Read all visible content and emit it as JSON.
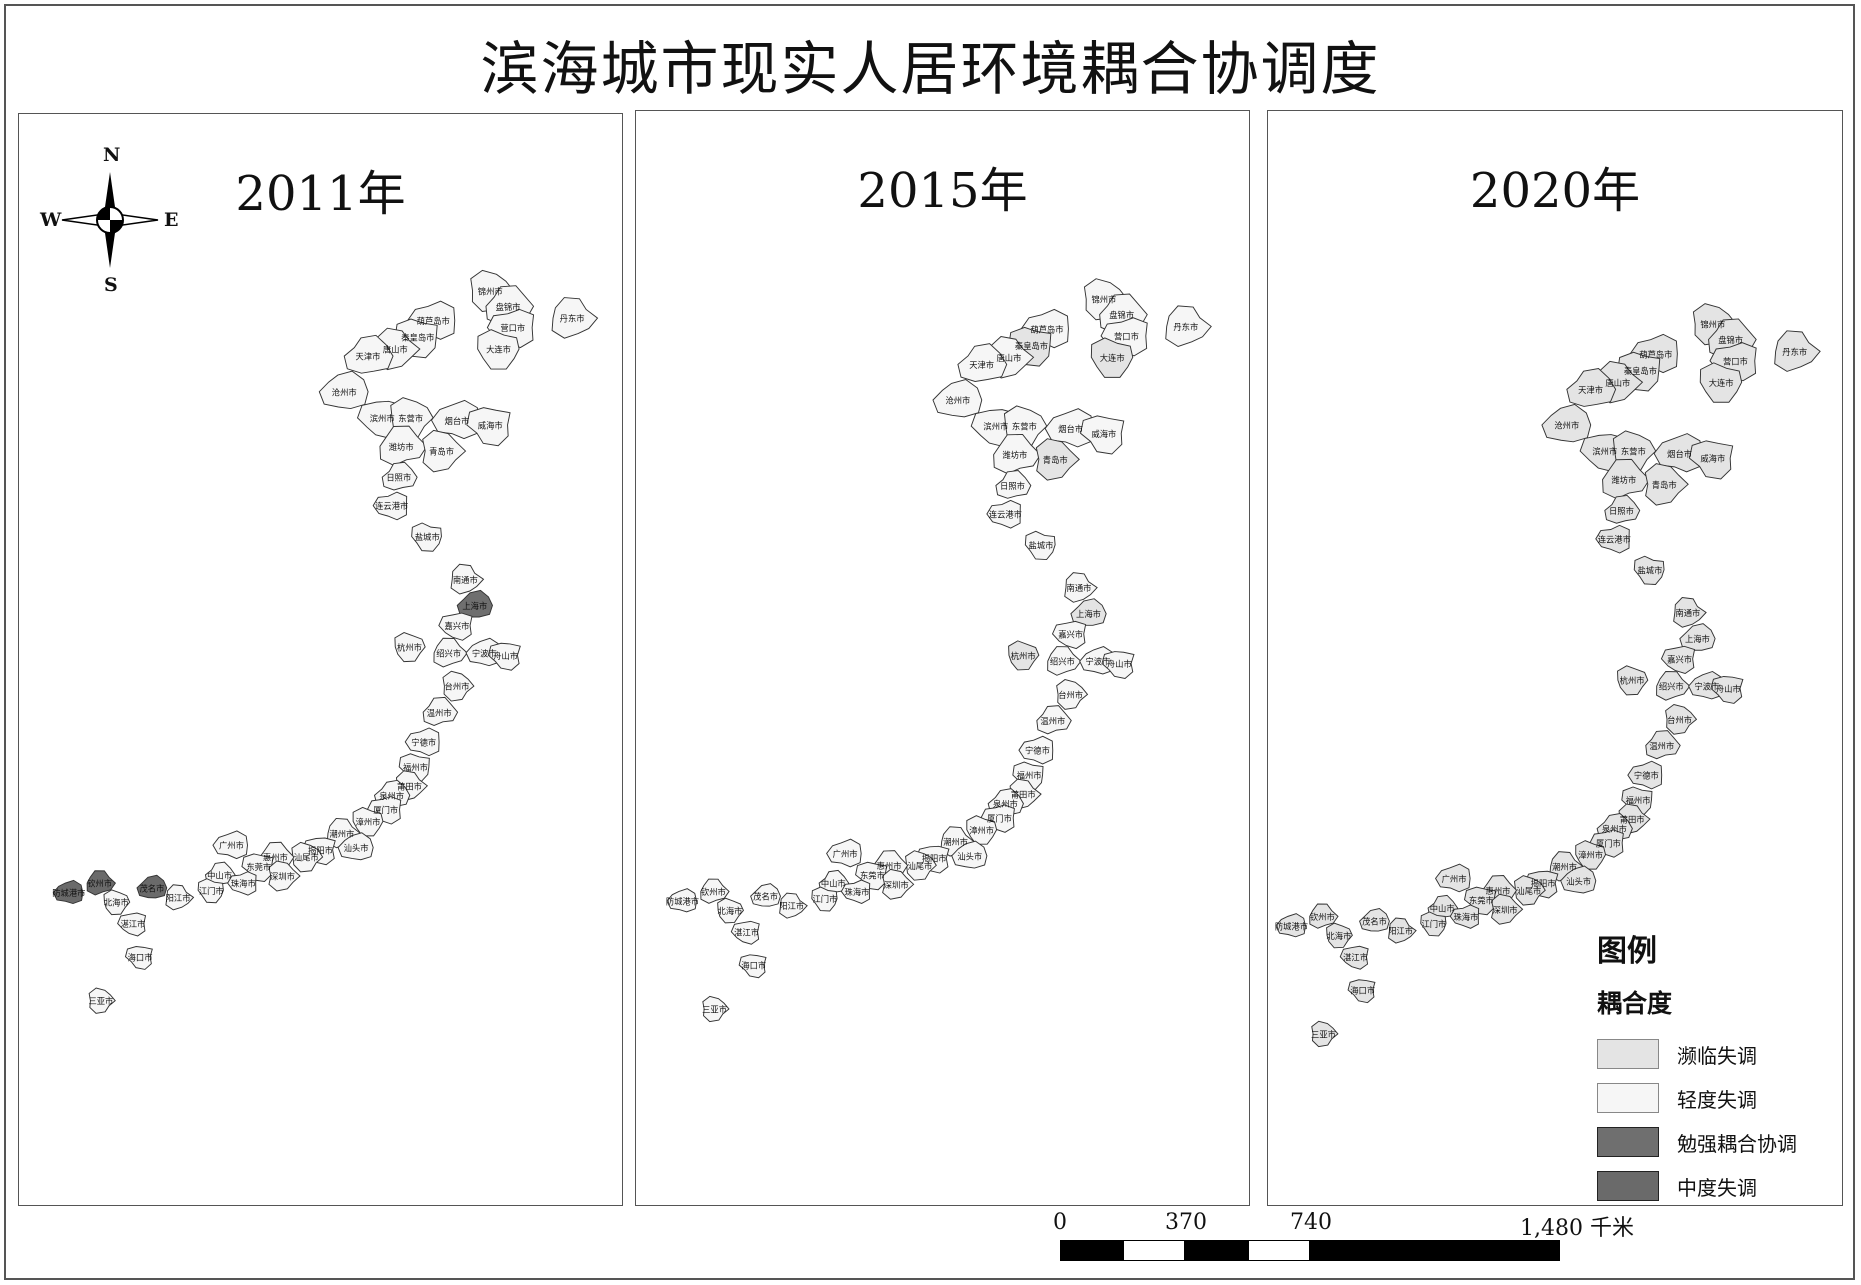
{
  "title": "滨海城市现实人居环境耦合协调度",
  "panels": [
    {
      "year": "2011年"
    },
    {
      "year": "2015年"
    },
    {
      "year": "2020年"
    }
  ],
  "compass": {
    "n": "N",
    "s": "S",
    "e": "E",
    "w": "W"
  },
  "legend": {
    "title": "图例",
    "subtitle": "耦合度",
    "items": [
      {
        "label": "濒临失调",
        "color": "#e4e4e4"
      },
      {
        "label": "轻度失调",
        "color": "#f6f6f6"
      },
      {
        "label": "勉强耦合协调",
        "color": "#6f6f6f"
      },
      {
        "label": "中度失调",
        "color": "#6a6a6a"
      }
    ]
  },
  "scale_bar": {
    "ticks": [
      "0",
      "370",
      "740",
      "1,480 千米"
    ]
  },
  "cities": [
    {
      "name": "锦州市",
      "c": [
        1,
        1,
        0
      ]
    },
    {
      "name": "盘锦市",
      "c": [
        1,
        1,
        0
      ]
    },
    {
      "name": "葫芦岛市",
      "c": [
        1,
        1,
        0
      ]
    },
    {
      "name": "秦皇岛市",
      "c": [
        1,
        0,
        0
      ]
    },
    {
      "name": "唐山市",
      "c": [
        1,
        1,
        0
      ]
    },
    {
      "name": "天津市",
      "c": [
        1,
        1,
        0
      ]
    },
    {
      "name": "营口市",
      "c": [
        1,
        1,
        0
      ]
    },
    {
      "name": "大连市",
      "c": [
        1,
        0,
        0
      ]
    },
    {
      "name": "丹东市",
      "c": [
        1,
        1,
        0
      ]
    },
    {
      "name": "沧州市",
      "c": [
        1,
        1,
        0
      ]
    },
    {
      "name": "滨州市",
      "c": [
        1,
        1,
        0
      ]
    },
    {
      "name": "东营市",
      "c": [
        1,
        1,
        0
      ]
    },
    {
      "name": "潍坊市",
      "c": [
        1,
        1,
        0
      ]
    },
    {
      "name": "烟台市",
      "c": [
        1,
        1,
        0
      ]
    },
    {
      "name": "威海市",
      "c": [
        1,
        1,
        0
      ]
    },
    {
      "name": "青岛市",
      "c": [
        1,
        0,
        0
      ]
    },
    {
      "name": "日照市",
      "c": [
        1,
        1,
        0
      ]
    },
    {
      "name": "连云港市",
      "c": [
        1,
        1,
        0
      ]
    },
    {
      "name": "盐城市",
      "c": [
        1,
        1,
        0
      ]
    },
    {
      "name": "南通市",
      "c": [
        1,
        1,
        0
      ]
    },
    {
      "name": "上海市",
      "c": [
        2,
        0,
        0
      ]
    },
    {
      "name": "嘉兴市",
      "c": [
        1,
        1,
        0
      ]
    },
    {
      "name": "杭州市",
      "c": [
        1,
        0,
        0
      ]
    },
    {
      "name": "绍兴市",
      "c": [
        1,
        1,
        0
      ]
    },
    {
      "name": "宁波市",
      "c": [
        1,
        1,
        0
      ]
    },
    {
      "name": "舟山市",
      "c": [
        1,
        1,
        0
      ]
    },
    {
      "name": "台州市",
      "c": [
        1,
        1,
        0
      ]
    },
    {
      "name": "温州市",
      "c": [
        1,
        1,
        0
      ]
    },
    {
      "name": "宁德市",
      "c": [
        1,
        1,
        0
      ]
    },
    {
      "name": "福州市",
      "c": [
        1,
        1,
        0
      ]
    },
    {
      "name": "莆田市",
      "c": [
        1,
        1,
        0
      ]
    },
    {
      "name": "泉州市",
      "c": [
        1,
        1,
        0
      ]
    },
    {
      "name": "厦门市",
      "c": [
        1,
        1,
        0
      ]
    },
    {
      "name": "漳州市",
      "c": [
        1,
        1,
        0
      ]
    },
    {
      "name": "潮州市",
      "c": [
        1,
        1,
        0
      ]
    },
    {
      "name": "汕头市",
      "c": [
        1,
        1,
        0
      ]
    },
    {
      "name": "揭阳市",
      "c": [
        1,
        1,
        0
      ]
    },
    {
      "name": "汕尾市",
      "c": [
        1,
        1,
        0
      ]
    },
    {
      "name": "惠州市",
      "c": [
        1,
        1,
        0
      ]
    },
    {
      "name": "广州市",
      "c": [
        1,
        1,
        0
      ]
    },
    {
      "name": "东莞市",
      "c": [
        1,
        1,
        0
      ]
    },
    {
      "name": "深圳市",
      "c": [
        1,
        1,
        0
      ]
    },
    {
      "name": "中山市",
      "c": [
        1,
        1,
        0
      ]
    },
    {
      "name": "珠海市",
      "c": [
        1,
        1,
        0
      ]
    },
    {
      "name": "江门市",
      "c": [
        1,
        1,
        0
      ]
    },
    {
      "name": "阳江市",
      "c": [
        1,
        1,
        0
      ]
    },
    {
      "name": "茂名市",
      "c": [
        3,
        1,
        0
      ]
    },
    {
      "name": "湛江市",
      "c": [
        1,
        1,
        0
      ]
    },
    {
      "name": "北海市",
      "c": [
        1,
        1,
        0
      ]
    },
    {
      "name": "钦州市",
      "c": [
        3,
        1,
        0
      ]
    },
    {
      "name": "防城港市",
      "c": [
        3,
        1,
        0
      ]
    },
    {
      "name": "海口市",
      "c": [
        1,
        1,
        0
      ]
    },
    {
      "name": "三亚市",
      "c": [
        1,
        1,
        0
      ]
    }
  ]
}
